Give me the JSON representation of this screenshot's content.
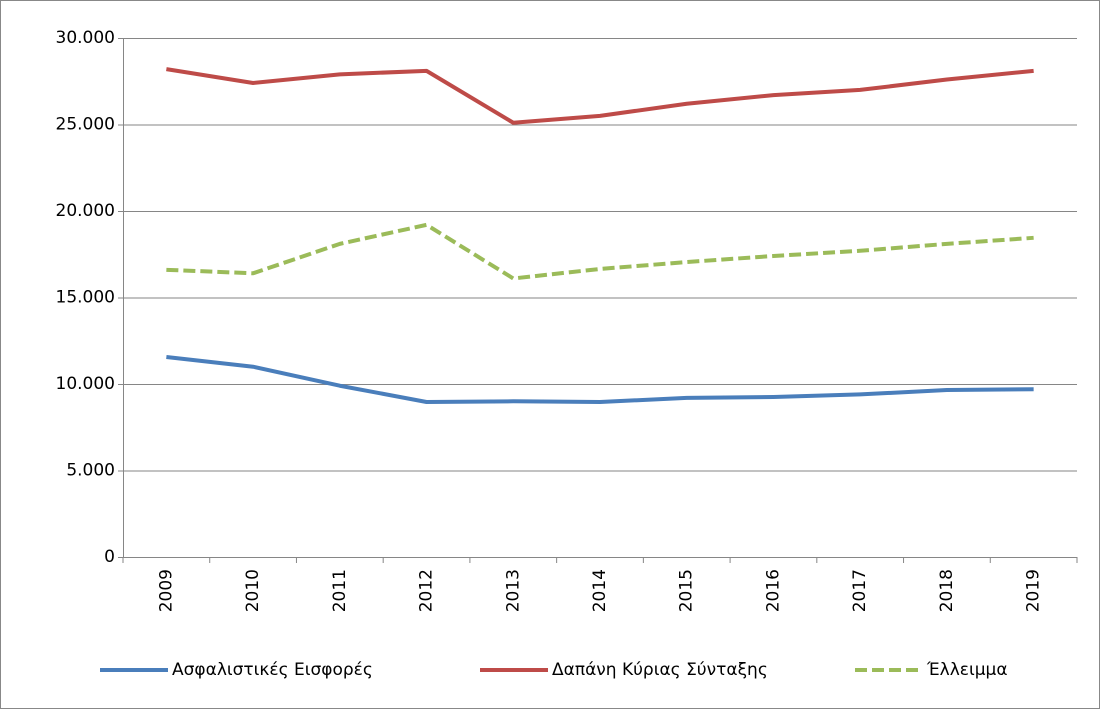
{
  "chart_data": {
    "type": "line",
    "categories": [
      "2009",
      "2010",
      "2011",
      "2012",
      "2013",
      "2014",
      "2015",
      "2016",
      "2017",
      "2018",
      "2019"
    ],
    "series": [
      {
        "name": "Ασφαλιστικές Εισφορές",
        "color": "#4a7ebb",
        "values": [
          11560,
          11000,
          9900,
          8960,
          9000,
          8960,
          9200,
          9250,
          9400,
          9650,
          9700
        ]
      },
      {
        "name": "Δαπάνη Κύριας Σύνταξης",
        "color": "#be4b48",
        "values": [
          28200,
          27400,
          27900,
          28100,
          25100,
          25500,
          26200,
          26700,
          27000,
          27600,
          28100
        ]
      },
      {
        "name": "Έλλειμμα",
        "color": "#9bbb59",
        "dashed": true,
        "values": [
          16600,
          16400,
          18100,
          19200,
          16100,
          16650,
          17050,
          17400,
          17700,
          18100,
          18450
        ]
      }
    ],
    "ylim": [
      0,
      30000
    ],
    "yticks": [
      0,
      {
        "value": 5000,
        "label": "5.000"
      },
      {
        "value": 10000,
        "label": "10.000"
      },
      {
        "value": 15000,
        "label": "15.000"
      },
      {
        "value": 20000,
        "label": "20.000"
      },
      {
        "value": 25000,
        "label": "25.000"
      },
      {
        "value": 30000,
        "label": "30.000"
      }
    ],
    "grid": true,
    "legend": "bottom"
  }
}
